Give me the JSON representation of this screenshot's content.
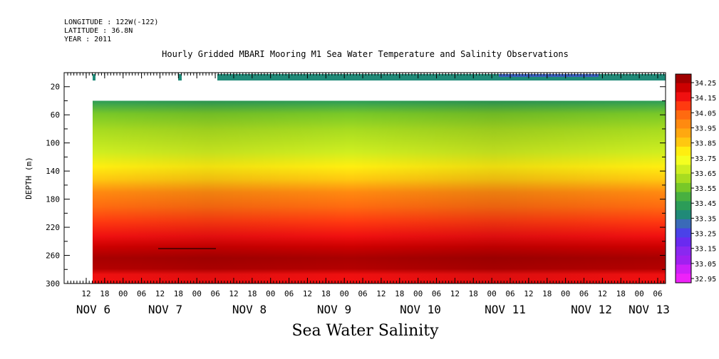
{
  "header": {
    "longitude": "LONGITUDE : 122W(-122)",
    "latitude": "LATITUDE : 36.8N",
    "year": "YEAR : 2011",
    "title": "Hourly Gridded MBARI Mooring M1 Sea Water Temperature and Salinity Observations"
  },
  "chart_data": {
    "type": "heatmap",
    "title": "Hourly Gridded MBARI Mooring M1 Sea Water Temperature and Salinity Observations",
    "xlabel": "Sea Water Salinity",
    "ylabel": "DEPTH (m)",
    "ylim": [
      300,
      0
    ],
    "yticks": [
      20,
      60,
      100,
      140,
      180,
      220,
      260,
      300
    ],
    "hour_tick_labels": [
      "12",
      "18",
      "00",
      "06",
      "12",
      "18",
      "00",
      "06",
      "12",
      "18",
      "00",
      "06",
      "12",
      "18",
      "00",
      "06",
      "12",
      "18",
      "00",
      "06",
      "12",
      "18",
      "00",
      "06",
      "12",
      "18",
      "00",
      "06",
      "12",
      "18",
      "00",
      "06"
    ],
    "day_labels": [
      "NOV  6",
      "NOV  7",
      "NOV  8",
      "NOV  9",
      "NOV 10",
      "NOV 11",
      "NOV 12",
      "NOV 13"
    ],
    "colorbar_levels": [
      "34.25",
      "34.15",
      "34.05",
      "33.95",
      "33.85",
      "33.75",
      "33.65",
      "33.55",
      "33.45",
      "33.35",
      "33.25",
      "33.15",
      "33.05",
      "32.95"
    ],
    "colorbar_colors": [
      "#a00000",
      "#cc0000",
      "#f01010",
      "#ff3a10",
      "#ff6a10",
      "#ff8a10",
      "#ffa810",
      "#ffc810",
      "#ffee10",
      "#f4ff20",
      "#cfee20",
      "#a8dc20",
      "#78c828",
      "#48b040",
      "#2c9c58",
      "#208a78",
      "#3a6ab8",
      "#4a42e8",
      "#6a2af0",
      "#8a28f0",
      "#a020f0",
      "#cc20f8",
      "#ee22f8"
    ],
    "depth_profile": [
      {
        "depth": 40,
        "salinity": 33.45
      },
      {
        "depth": 60,
        "salinity": 33.6
      },
      {
        "depth": 100,
        "salinity": 33.7
      },
      {
        "depth": 130,
        "salinity": 33.8
      },
      {
        "depth": 150,
        "salinity": 33.95
      },
      {
        "depth": 180,
        "salinity": 34.05
      },
      {
        "depth": 210,
        "salinity": 34.15
      },
      {
        "depth": 250,
        "salinity": 34.25
      },
      {
        "depth": 290,
        "salinity": 34.15
      }
    ]
  }
}
